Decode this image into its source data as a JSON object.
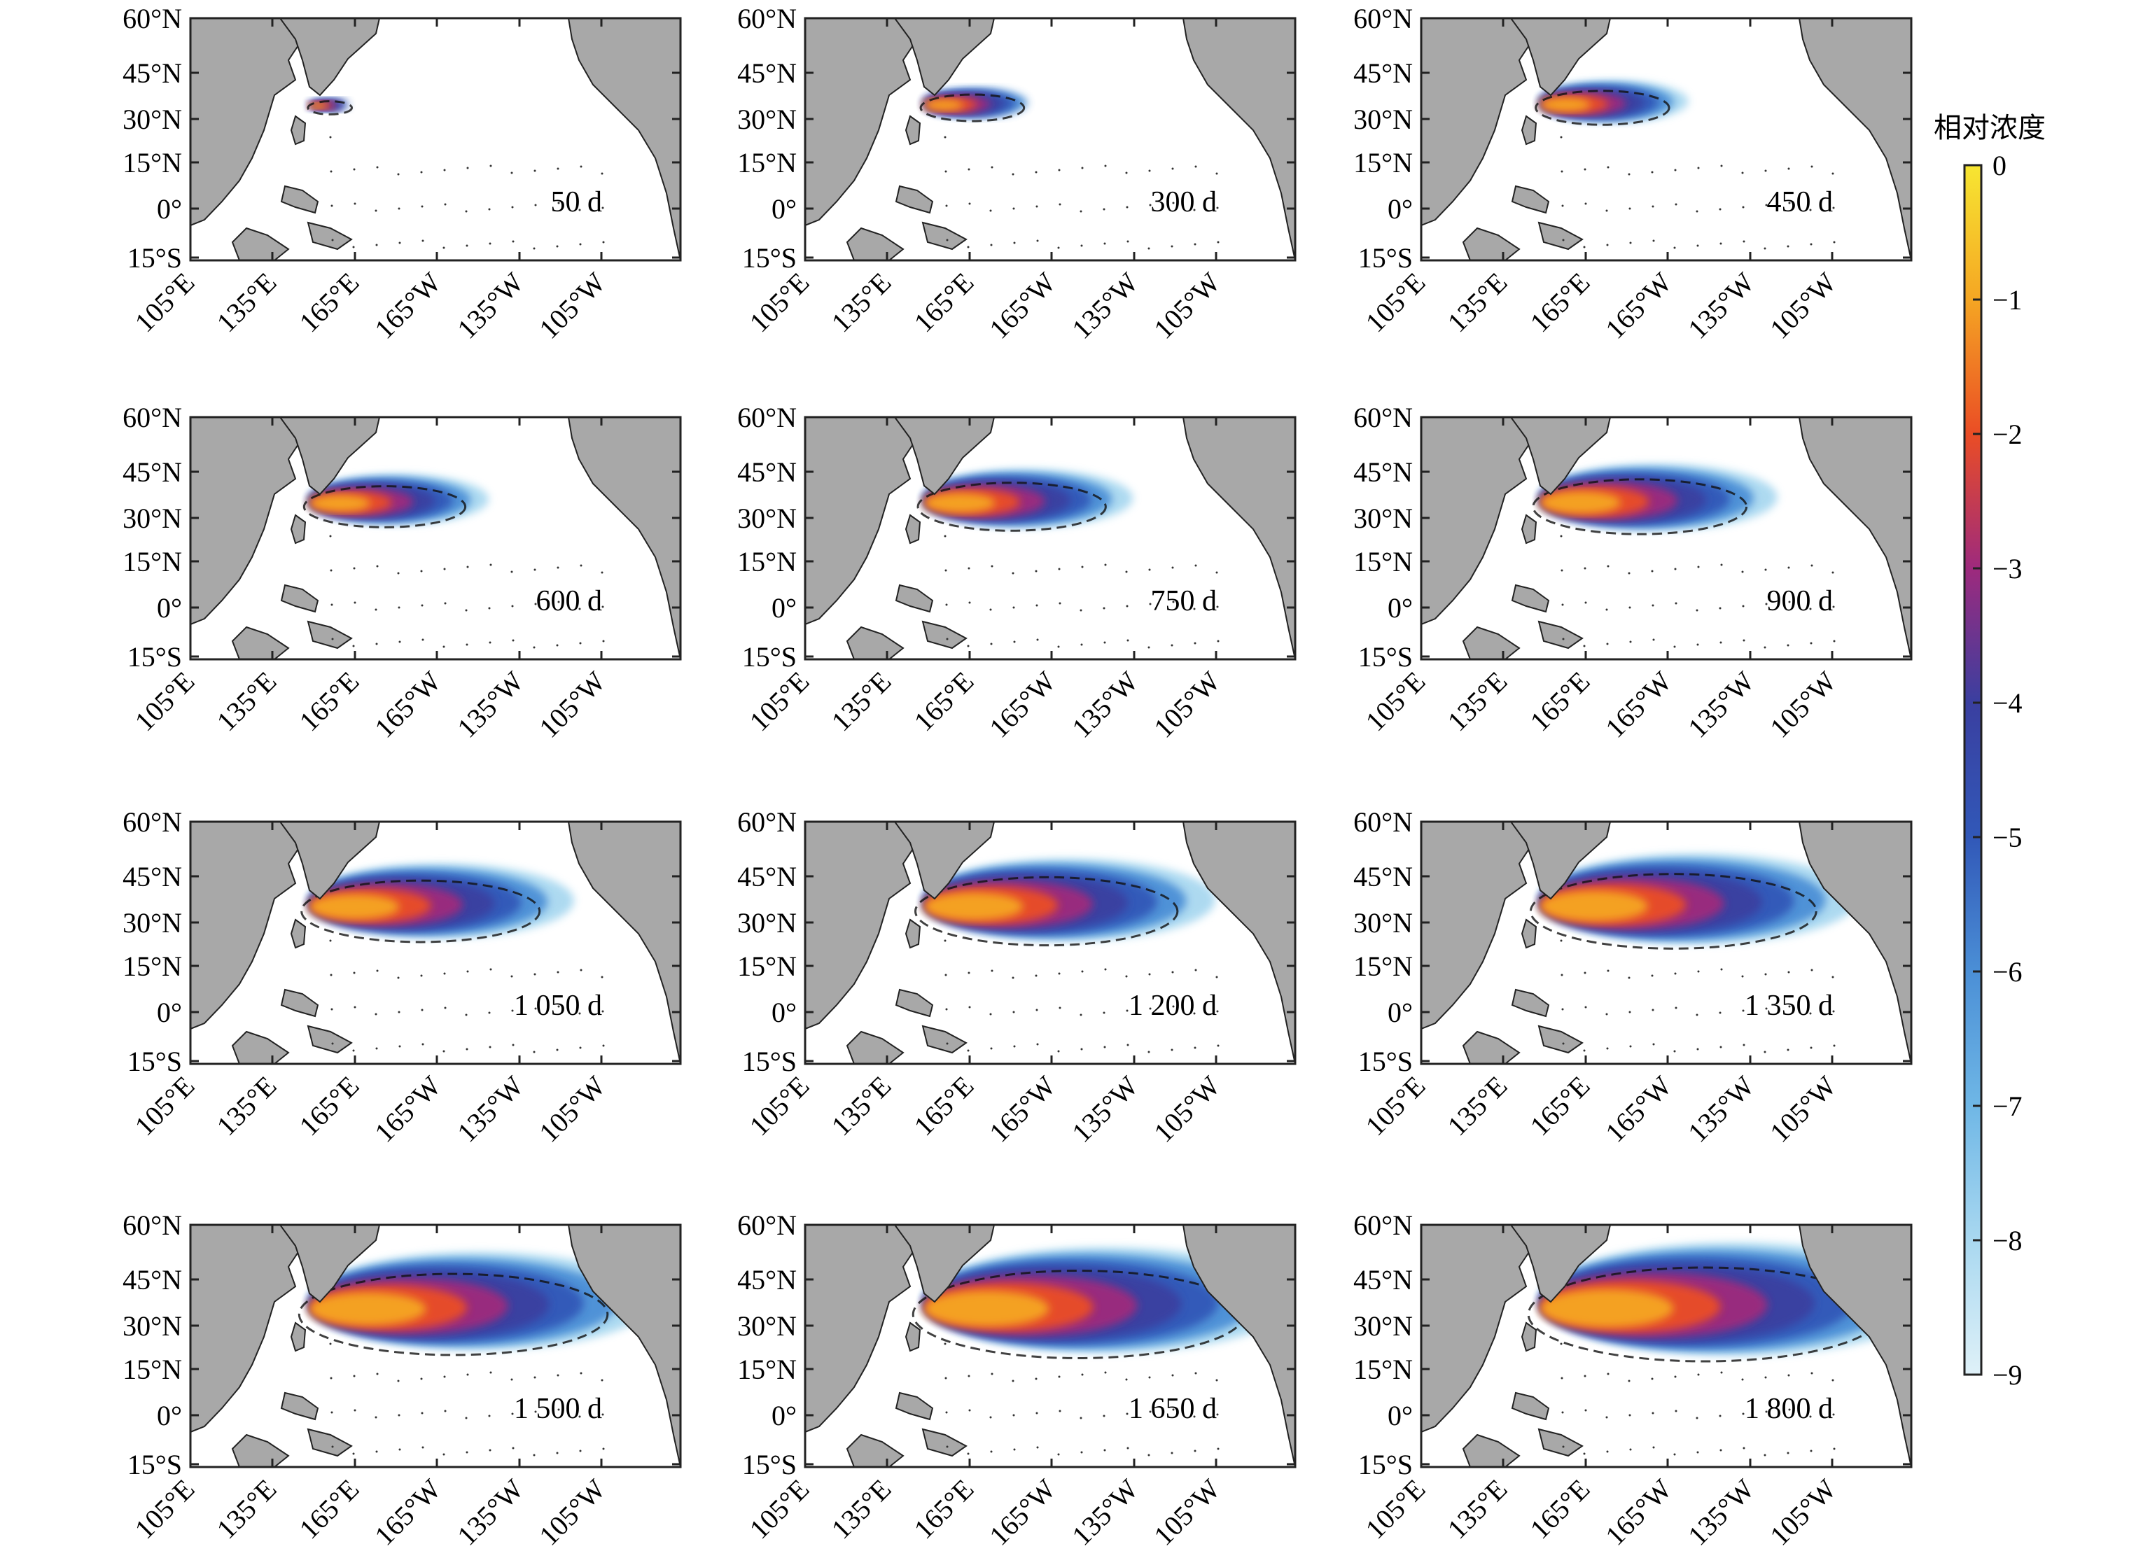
{
  "figure": {
    "lat_labels": [
      "60°N",
      "45°N",
      "30°N",
      "15°N",
      "0°",
      "15°S"
    ],
    "lon_labels": [
      "105°E",
      "135°E",
      "165°E",
      "165°W",
      "135°W",
      "105°W"
    ],
    "panels": [
      {
        "label": "50 d",
        "day": 50
      },
      {
        "label": "300 d",
        "day": 300
      },
      {
        "label": "450 d",
        "day": 450
      },
      {
        "label": "600 d",
        "day": 600
      },
      {
        "label": "750 d",
        "day": 750
      },
      {
        "label": "900 d",
        "day": 900
      },
      {
        "label": "1 050 d",
        "day": 1050
      },
      {
        "label": "1 200 d",
        "day": 1200
      },
      {
        "label": "1 350 d",
        "day": 1350
      },
      {
        "label": "1 500 d",
        "day": 1500
      },
      {
        "label": "1 650 d",
        "day": 1650
      },
      {
        "label": "1 800 d",
        "day": 1800
      }
    ],
    "colorbar": {
      "title": "相对浓度",
      "ticks": [
        "0",
        "−1",
        "−2",
        "−3",
        "−4",
        "−5",
        "−6",
        "−7",
        "−8",
        "−9"
      ],
      "range": [
        0,
        -9
      ],
      "colors": [
        "#f7e632",
        "#f5a623",
        "#ea4d25",
        "#9e2a7d",
        "#3a3fa0",
        "#3158b8",
        "#4b8fd6",
        "#6fb7e6",
        "#a9d8f0",
        "#dff1f8"
      ]
    },
    "land_color": "#a8a8a8"
  }
}
